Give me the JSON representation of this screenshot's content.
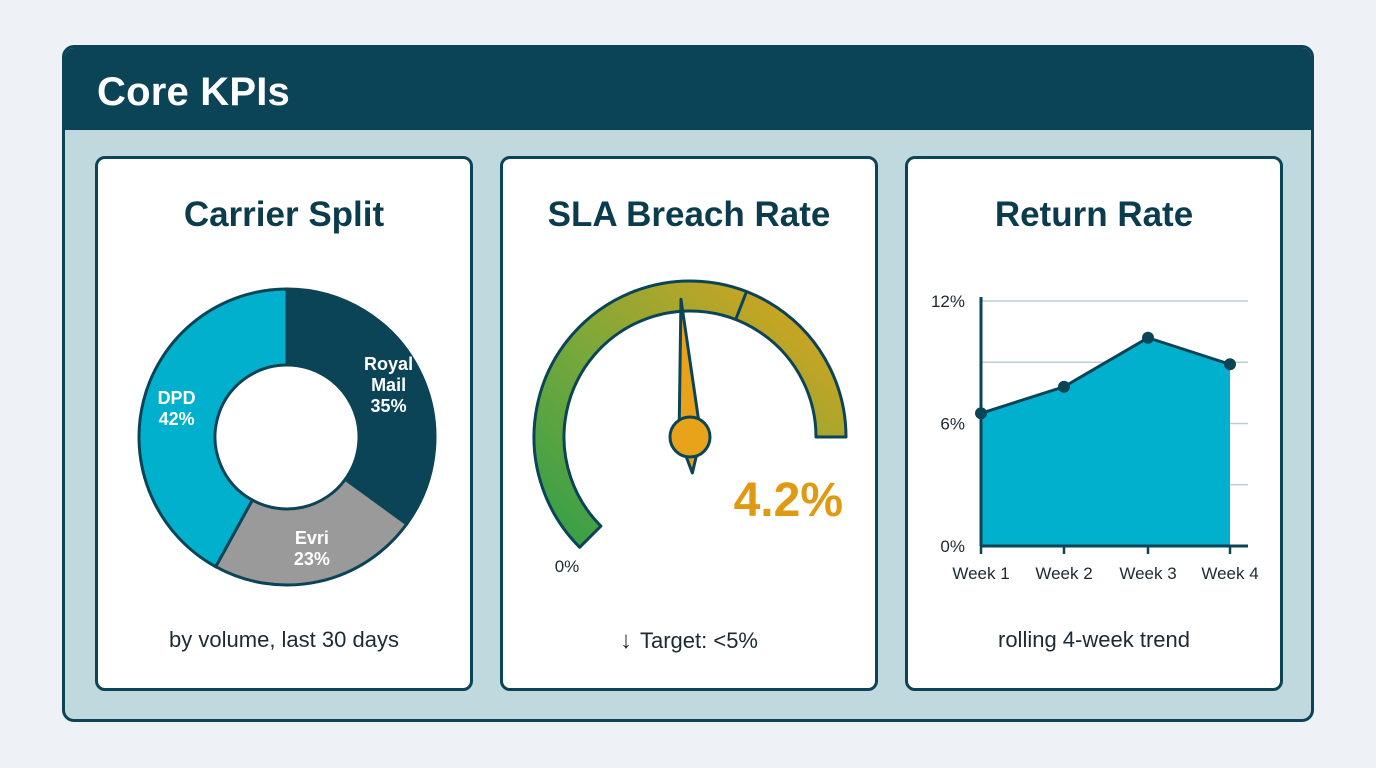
{
  "header": {
    "title": "Core KPIs"
  },
  "cards": [
    {
      "title": "Carrier Split",
      "caption": "by volume, last 30 days"
    },
    {
      "title": "SLA Breach Rate",
      "caption": "Target: <5%",
      "caption_icon": "arrow-down-icon"
    },
    {
      "title": "Return Rate",
      "caption": "rolling 4-week trend"
    }
  ],
  "colors": {
    "header": "#0b4457",
    "royal_mail": "#0b4457",
    "dpd": "#00b0cc",
    "evri": "#9a9a9a",
    "gauge_low": "#2e9e4a",
    "gauge_high": "#e8a31a",
    "value": "#e09a12",
    "area": "#00b0cc"
  },
  "chart_data": [
    {
      "type": "pie",
      "title": "Carrier Split",
      "subtitle": "by volume, last 30 days",
      "slices": [
        {
          "label_lines": [
            "Royal",
            "Mail"
          ],
          "value": 35,
          "value_label": "35%"
        },
        {
          "label_lines": [
            "Evri"
          ],
          "value": 23,
          "value_label": "23%"
        },
        {
          "label_lines": [
            "DPD"
          ],
          "value": 42,
          "value_label": "42%"
        }
      ]
    },
    {
      "type": "gauge",
      "title": "SLA Breach Rate",
      "value": 4.2,
      "value_label": "4.2%",
      "min_label": "0%",
      "target_marker": 5
    },
    {
      "type": "area",
      "title": "Return Rate",
      "subtitle": "rolling 4-week trend",
      "categories": [
        "Week 1",
        "Week 2",
        "Week 3",
        "Week 4"
      ],
      "values": [
        6.5,
        7.8,
        10.2,
        8.9
      ],
      "ylim": [
        0,
        12
      ],
      "yticks": [
        {
          "value": 0,
          "label": "0%"
        },
        {
          "value": 6,
          "label": "6%"
        },
        {
          "value": 12,
          "label": "12%"
        }
      ],
      "grid": true
    }
  ]
}
